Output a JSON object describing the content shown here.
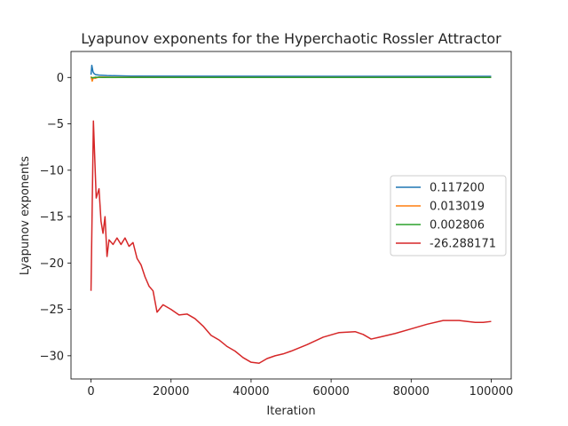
{
  "chart_data": {
    "type": "line",
    "title": "Lyapunov exponents for the Hyperchaotic Rossler Attractor",
    "xlabel": "Iteration",
    "ylabel": "Lyapunov exponents",
    "xlim": [
      -5000,
      105000
    ],
    "ylim": [
      -32.5,
      2.8
    ],
    "xticks": [
      0,
      20000,
      40000,
      60000,
      80000,
      100000
    ],
    "xtick_labels": [
      "0",
      "20000",
      "40000",
      "60000",
      "80000",
      "100000"
    ],
    "yticks": [
      0,
      -5,
      -10,
      -15,
      -20,
      -25,
      -30
    ],
    "ytick_labels": [
      "0",
      "−5",
      "−10",
      "−15",
      "−20",
      "−25",
      "−30"
    ],
    "grid": false,
    "legend_position": "center-right",
    "series": [
      {
        "name": "0.117200",
        "color": "#1f77b4",
        "x": [
          0,
          200,
          500,
          800,
          1200,
          2000,
          4000,
          10000,
          30000,
          60000,
          100000
        ],
        "y": [
          0.3,
          1.3,
          0.6,
          0.4,
          0.3,
          0.25,
          0.2,
          0.15,
          0.13,
          0.12,
          0.12
        ]
      },
      {
        "name": "0.013019",
        "color": "#ff7f0e",
        "x": [
          0,
          300,
          600,
          1000,
          2000,
          5000,
          10000,
          30000,
          100000
        ],
        "y": [
          0.1,
          -0.4,
          0.0,
          -0.1,
          0.05,
          0.02,
          0.02,
          0.01,
          0.01
        ]
      },
      {
        "name": "0.002806",
        "color": "#2ca02c",
        "x": [
          0,
          500,
          1000,
          3000,
          10000,
          50000,
          100000
        ],
        "y": [
          0.0,
          -0.05,
          0.02,
          0.0,
          0.0,
          0.0,
          0.0
        ]
      },
      {
        "name": "-26.288171",
        "color": "#d62728",
        "x": [
          0,
          600,
          1300,
          2000,
          2500,
          3000,
          3500,
          4000,
          4500,
          5500,
          6500,
          7500,
          8500,
          9500,
          10500,
          11500,
          12500,
          13500,
          14500,
          15500,
          16500,
          18000,
          20000,
          22000,
          24000,
          26000,
          28000,
          30000,
          32000,
          34000,
          36000,
          38000,
          40000,
          42000,
          44000,
          46000,
          48000,
          50000,
          54000,
          58000,
          62000,
          66000,
          68000,
          70000,
          72000,
          76000,
          80000,
          84000,
          88000,
          92000,
          96000,
          98000,
          100000
        ],
        "y": [
          -23.0,
          -4.7,
          -13.0,
          -12.0,
          -15.5,
          -16.8,
          -15.0,
          -19.3,
          -17.5,
          -18.0,
          -17.3,
          -18.0,
          -17.3,
          -18.2,
          -17.8,
          -19.5,
          -20.2,
          -21.5,
          -22.5,
          -23.0,
          -25.3,
          -24.5,
          -25.0,
          -25.6,
          -25.5,
          -26.0,
          -26.8,
          -27.8,
          -28.3,
          -29.0,
          -29.5,
          -30.2,
          -30.7,
          -30.8,
          -30.3,
          -30.0,
          -29.8,
          -29.5,
          -28.8,
          -28.0,
          -27.5,
          -27.4,
          -27.7,
          -28.2,
          -28.0,
          -27.6,
          -27.1,
          -26.6,
          -26.2,
          -26.2,
          -26.4,
          -26.4,
          -26.3
        ]
      }
    ]
  }
}
